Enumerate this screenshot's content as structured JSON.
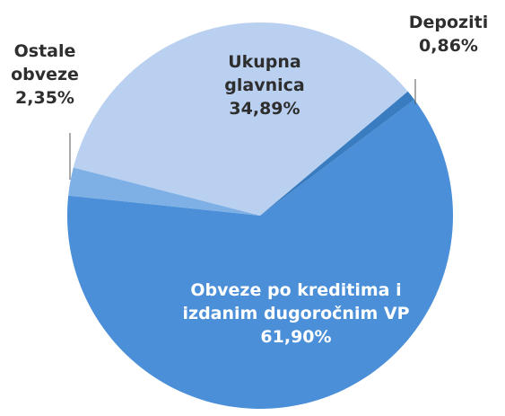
{
  "chart_data": {
    "type": "pie",
    "categories": [
      "Depoziti",
      "Obveze po kreditima i izdanim dugoročnim VP",
      "Ostale obveze",
      "Ukupna glavnica"
    ],
    "values": [
      0.86,
      61.9,
      2.35,
      34.89
    ],
    "value_labels": [
      "0,86%",
      "61,90%",
      "2,35%",
      "34,89%"
    ],
    "colors": [
      "#3a7cc0",
      "#4a8fd8",
      "#7eb0e6",
      "#b9d0f0"
    ]
  }
}
